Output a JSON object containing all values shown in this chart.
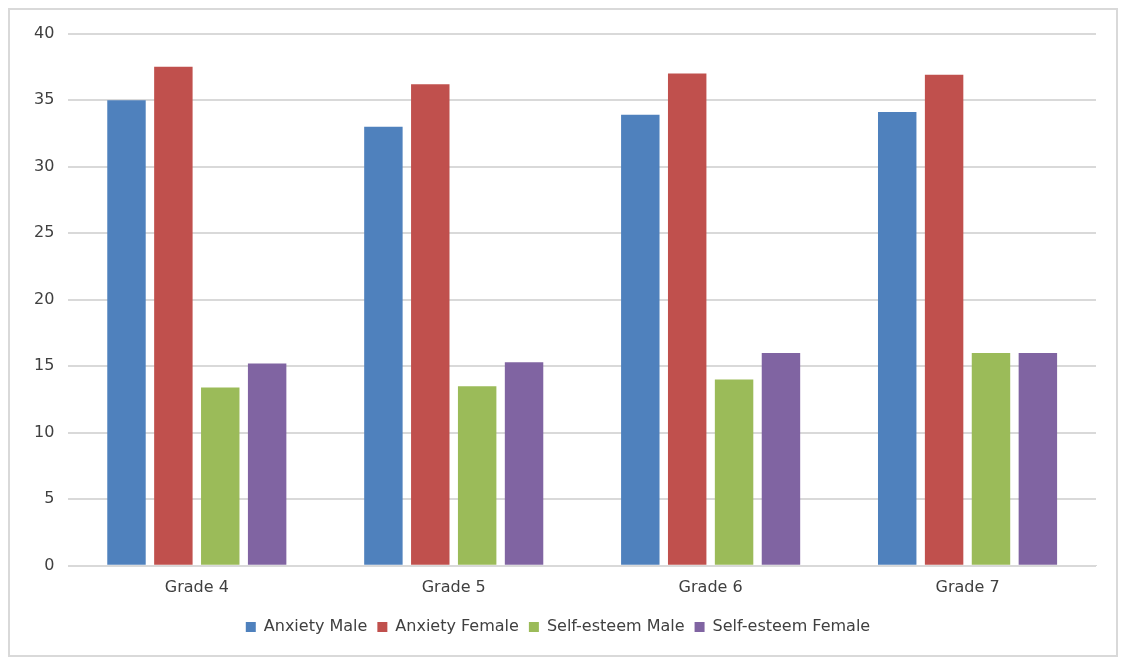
{
  "chart_data": {
    "type": "bar",
    "categories": [
      "Grade 4",
      "Grade 5",
      "Grade 6",
      "Grade 7"
    ],
    "series": [
      {
        "name": "Anxiety Male",
        "color": "#4f81bd",
        "values": [
          35,
          33,
          33.9,
          34.1
        ]
      },
      {
        "name": "Anxiety Female",
        "color": "#c0504d",
        "values": [
          37.5,
          36.2,
          37,
          36.9
        ]
      },
      {
        "name": "Self-esteem Male",
        "color": "#9bbb59",
        "values": [
          13.4,
          13.5,
          14,
          16
        ]
      },
      {
        "name": "Self-esteem Female",
        "color": "#8064a2",
        "values": [
          15.2,
          15.3,
          16,
          16
        ]
      }
    ],
    "ylim": [
      0,
      40
    ],
    "yticks": [
      0,
      5,
      10,
      15,
      20,
      25,
      30,
      35,
      40
    ],
    "grid": "y",
    "legend": "bottom"
  }
}
